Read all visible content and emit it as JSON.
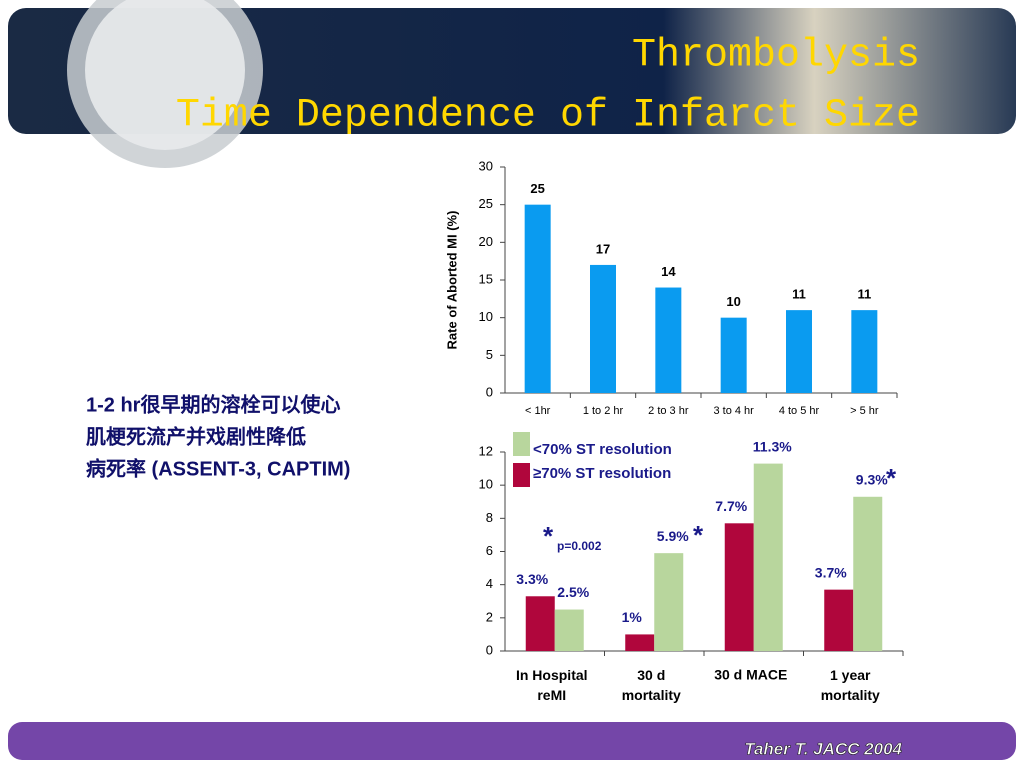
{
  "title_lines": [
    "Thrombolysis",
    "Time Dependence of Infarct Size"
  ],
  "side_text": [
    "1-2 hr很早期的溶栓可以使心",
    "肌梗死流产并戏剧性降低",
    "病死率 (ASSENT-3, CAPTIM)"
  ],
  "citation": "Taher T. JACC 2004",
  "chart_data": [
    {
      "type": "bar",
      "ylabel": "Rate of Aborted MI (%)",
      "categories": [
        "< 1hr",
        "1 to 2 hr",
        "2 to 3 hr",
        "3 to 4 hr",
        "4 to 5 hr",
        "> 5 hr"
      ],
      "values": [
        25,
        17,
        14,
        10,
        11,
        11
      ],
      "color": "#0a9bf0",
      "ylim": [
        0,
        30
      ],
      "yticks": [
        0,
        5,
        10,
        15,
        20,
        25,
        30
      ]
    },
    {
      "type": "grouped_bar",
      "categories": [
        "In Hospital\nreMI",
        "30 d\nmortality",
        "30 d MACE",
        "1 year\nmortality"
      ],
      "series": [
        {
          "name": "≥70% ST resolution",
          "color": "#b0063c",
          "values": [
            3.3,
            1,
            7.7,
            3.7
          ],
          "value_labels": [
            "3.3%",
            "1%",
            "7.7%",
            "3.7%"
          ]
        },
        {
          "name": "<70% ST resolution",
          "color": "#b8d69d",
          "values": [
            2.5,
            5.9,
            11.3,
            9.3
          ],
          "value_labels": [
            "2.5%",
            "5.9%",
            "11.3%",
            "9.3%"
          ]
        }
      ],
      "legend_order": [
        1,
        0
      ],
      "ylim": [
        0,
        12
      ],
      "yticks": [
        0,
        2,
        4,
        6,
        8,
        10,
        12
      ],
      "annotations": [
        "*",
        "p=0.002",
        "*",
        "*"
      ]
    }
  ]
}
